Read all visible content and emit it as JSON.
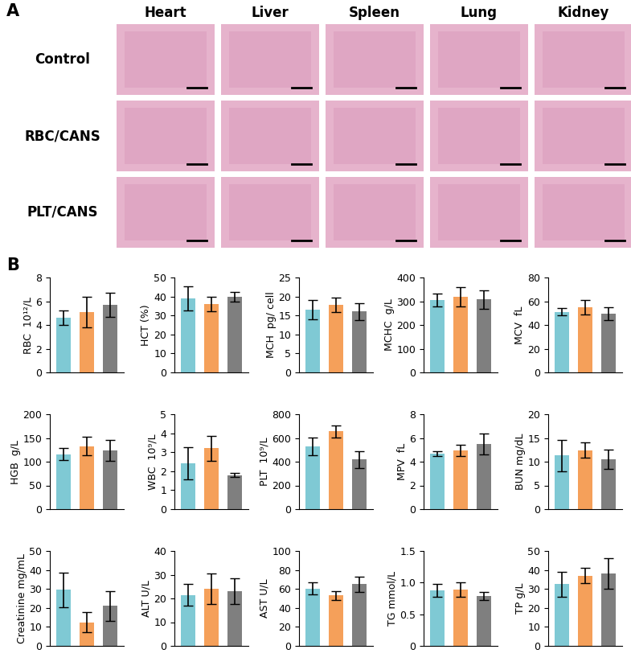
{
  "panel_labels": [
    "A",
    "B"
  ],
  "histology": {
    "columns": [
      "Heart",
      "Liver",
      "Spleen",
      "Lung",
      "Kidney"
    ],
    "rows": [
      "Control",
      "RBC/CANS",
      "PLT/CANS"
    ]
  },
  "chart_data": [
    {
      "type": "bar",
      "ylabel": "RBC  10¹²/L",
      "categories": [
        null,
        null,
        null
      ],
      "values": [
        4.6,
        5.1,
        5.7
      ],
      "errors": [
        0.6,
        1.3,
        1.0
      ],
      "colors": [
        "#7fc9d4",
        "#f5a05a",
        "#7f7f7f"
      ],
      "ylim": [
        0,
        8
      ],
      "yticks": [
        0,
        2,
        4,
        6,
        8
      ],
      "tick_labels": "y"
    },
    {
      "type": "bar",
      "ylabel": "HCT (%)",
      "categories": [
        null,
        null,
        null
      ],
      "values": [
        39,
        36,
        40
      ],
      "errors": [
        6.5,
        4,
        2.5
      ],
      "colors": [
        "#7fc9d4",
        "#f5a05a",
        "#7f7f7f"
      ],
      "ylim": [
        0,
        50
      ],
      "yticks": [
        0,
        10,
        20,
        30,
        40,
        50
      ],
      "tick_labels": "y"
    },
    {
      "type": "bar",
      "ylabel": "MCH  pg/ cell",
      "categories": [
        null,
        null,
        null
      ],
      "values": [
        16.5,
        17.8,
        16
      ],
      "errors": [
        2.5,
        2,
        2.2
      ],
      "colors": [
        "#7fc9d4",
        "#f5a05a",
        "#7f7f7f"
      ],
      "ylim": [
        0,
        25
      ],
      "yticks": [
        0,
        5,
        10,
        15,
        20,
        25
      ],
      "tick_labels": "y"
    },
    {
      "type": "bar",
      "ylabel": "MCHC  g/L",
      "categories": [
        null,
        null,
        null
      ],
      "values": [
        305,
        318,
        307
      ],
      "errors": [
        28,
        40,
        40
      ],
      "colors": [
        "#7fc9d4",
        "#f5a05a",
        "#7f7f7f"
      ],
      "ylim": [
        0,
        400
      ],
      "yticks": [
        0,
        100,
        200,
        300,
        400
      ],
      "tick_labels": "y"
    },
    {
      "type": "bar",
      "ylabel": "MCV  fL",
      "categories": [
        null,
        null,
        null
      ],
      "values": [
        51,
        55,
        49.5
      ],
      "errors": [
        3,
        6,
        5.5
      ],
      "colors": [
        "#7fc9d4",
        "#f5a05a",
        "#7f7f7f"
      ],
      "ylim": [
        0,
        80
      ],
      "yticks": [
        0,
        20,
        40,
        60,
        80
      ],
      "tick_labels": "y"
    },
    {
      "type": "bar",
      "ylabel": "HGB  g/L",
      "categories": [
        null,
        null,
        null
      ],
      "values": [
        116,
        133,
        123
      ],
      "errors": [
        13,
        20,
        22
      ],
      "colors": [
        "#7fc9d4",
        "#f5a05a",
        "#7f7f7f"
      ],
      "ylim": [
        0,
        200
      ],
      "yticks": [
        0,
        50,
        100,
        150,
        200
      ],
      "tick_labels": "y"
    },
    {
      "type": "bar",
      "ylabel": "WBC  10⁹/L",
      "categories": [
        null,
        null,
        null
      ],
      "values": [
        2.4,
        3.2,
        1.8
      ],
      "errors": [
        0.85,
        0.65,
        0.12
      ],
      "colors": [
        "#7fc9d4",
        "#f5a05a",
        "#7f7f7f"
      ],
      "ylim": [
        0,
        5
      ],
      "yticks": [
        0,
        1,
        2,
        3,
        4,
        5
      ],
      "tick_labels": "y"
    },
    {
      "type": "bar",
      "ylabel": "PLT  10⁹/L",
      "categories": [
        null,
        null,
        null
      ],
      "values": [
        530,
        655,
        418
      ],
      "errors": [
        75,
        50,
        70
      ],
      "colors": [
        "#7fc9d4",
        "#f5a05a",
        "#7f7f7f"
      ],
      "ylim": [
        0,
        800
      ],
      "yticks": [
        0,
        200,
        400,
        600,
        800
      ],
      "tick_labels": "y"
    },
    {
      "type": "bar",
      "ylabel": "MPV  fL",
      "categories": [
        null,
        null,
        null
      ],
      "values": [
        4.7,
        4.95,
        5.5
      ],
      "errors": [
        0.2,
        0.5,
        0.9
      ],
      "colors": [
        "#7fc9d4",
        "#f5a05a",
        "#7f7f7f"
      ],
      "ylim": [
        0,
        8
      ],
      "yticks": [
        0,
        2,
        4,
        6,
        8
      ],
      "tick_labels": "y"
    },
    {
      "type": "bar",
      "ylabel": "BUN mg/dL",
      "categories": [
        null,
        null,
        null
      ],
      "values": [
        11.3,
        12.4,
        10.5
      ],
      "errors": [
        3.3,
        1.6,
        2.1
      ],
      "colors": [
        "#7fc9d4",
        "#f5a05a",
        "#7f7f7f"
      ],
      "ylim": [
        0,
        20
      ],
      "yticks": [
        0,
        5,
        10,
        15,
        20
      ],
      "tick_labels": "y"
    },
    {
      "type": "bar",
      "ylabel": "Creatinine mg/mL",
      "categories": [
        null,
        null,
        null
      ],
      "values": [
        29.5,
        12.5,
        21
      ],
      "errors": [
        9,
        5.5,
        8
      ],
      "colors": [
        "#7fc9d4",
        "#f5a05a",
        "#7f7f7f"
      ],
      "ylim": [
        0,
        50
      ],
      "yticks": [
        0,
        10,
        20,
        30,
        40,
        50
      ],
      "tick_labels": "y"
    },
    {
      "type": "bar",
      "ylabel": "ALT U/L",
      "categories": [
        null,
        null,
        null
      ],
      "values": [
        21.5,
        24,
        23
      ],
      "errors": [
        4.5,
        6.5,
        5.5
      ],
      "colors": [
        "#7fc9d4",
        "#f5a05a",
        "#7f7f7f"
      ],
      "ylim": [
        0,
        40
      ],
      "yticks": [
        0,
        10,
        20,
        30,
        40
      ],
      "tick_labels": "y"
    },
    {
      "type": "bar",
      "ylabel": "AST U/L",
      "categories": [
        null,
        null,
        null
      ],
      "values": [
        60.5,
        53,
        65
      ],
      "errors": [
        6.5,
        4.5,
        8
      ],
      "colors": [
        "#7fc9d4",
        "#f5a05a",
        "#7f7f7f"
      ],
      "ylim": [
        0,
        100
      ],
      "yticks": [
        0,
        20,
        40,
        60,
        80,
        100
      ],
      "tick_labels": "y"
    },
    {
      "type": "bar",
      "ylabel": "TG mmol/L",
      "categories": [
        null,
        null,
        null
      ],
      "values": [
        0.88,
        0.89,
        0.79
      ],
      "errors": [
        0.1,
        0.12,
        0.06
      ],
      "colors": [
        "#7fc9d4",
        "#f5a05a",
        "#7f7f7f"
      ],
      "ylim": [
        0,
        1.5
      ],
      "yticks": [
        0,
        0.5,
        {
          "value": 1.0,
          "label": "1.0"
        },
        1.5
      ],
      "tick_labels": "y"
    },
    {
      "type": "bar",
      "ylabel": "TP g/L",
      "categories": [
        null,
        null,
        null
      ],
      "values": [
        32.5,
        37,
        38
      ],
      "errors": [
        6.5,
        4,
        8
      ],
      "colors": [
        "#7fc9d4",
        "#f5a05a",
        "#7f7f7f"
      ],
      "ylim": [
        0,
        50
      ],
      "yticks": [
        0,
        10,
        20,
        30,
        40,
        50
      ],
      "tick_labels": "y"
    }
  ]
}
